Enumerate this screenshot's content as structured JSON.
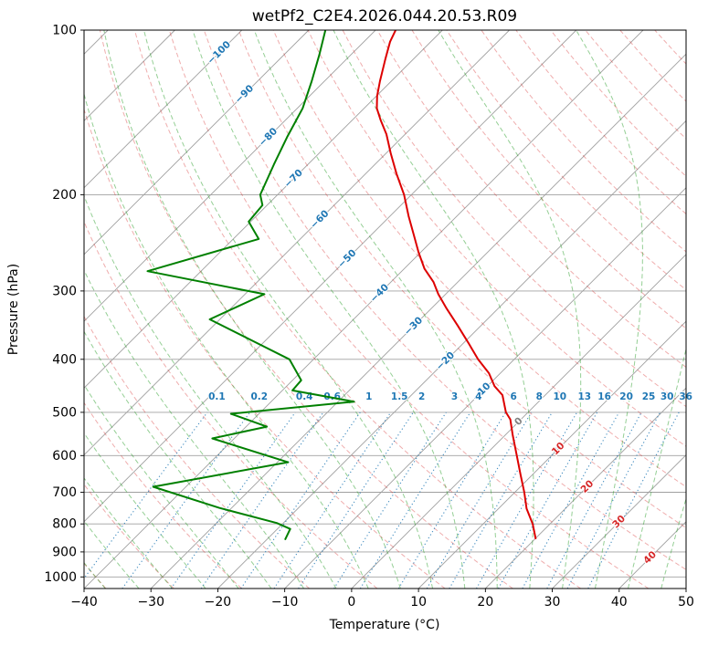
{
  "title": "wetPf2_C2E4.2026.044.20.53.R09",
  "axes": {
    "xlabel": "Temperature (°C)",
    "ylabel": "Pressure (hPa)",
    "x_tick_values": [
      -40,
      -30,
      -20,
      -10,
      0,
      10,
      20,
      30,
      40,
      50
    ],
    "x_tick_labels": [
      "−40",
      "−30",
      "−20",
      "−10",
      "0",
      "10",
      "20",
      "30",
      "40",
      "50"
    ],
    "y_tick_values": [
      100,
      200,
      300,
      400,
      500,
      600,
      700,
      800,
      900,
      1000
    ],
    "y_tick_labels": [
      "100",
      "200",
      "300",
      "400",
      "500",
      "600",
      "700",
      "800",
      "900",
      "1000"
    ]
  },
  "colors": {
    "temperature": "#dd0000",
    "dewpoint": "#008000",
    "isotherm": "#a0a0a0",
    "isobar": "#a0a0a0",
    "dry_adiabat": "rgba(214,39,40,0.38)",
    "moist_adiabat": "rgba(44,160,44,0.5)",
    "mixing_ratio": "rgba(31,119,180,0.85)",
    "label_negative": "#1f77b4",
    "label_zero": "#808080",
    "label_positive": "#d62728",
    "frame": "#000000"
  },
  "chart_data": {
    "type": "line",
    "diagram": "skew-t-log-p",
    "title": "wetPf2_C2E4.2026.044.20.53.R09",
    "xlabel": "Temperature (°C)",
    "ylabel": "Pressure (hPa)",
    "x_range_C": [
      -40,
      50
    ],
    "pressure_range_hPa": [
      1050,
      100
    ],
    "y_scale": "log",
    "skew_degrees": 45,
    "grid": true,
    "series": [
      {
        "name": "temperature",
        "color_key": "temperature",
        "points_p_T": [
          [
            850,
            20.0
          ],
          [
            800,
            17.4
          ],
          [
            750,
            14.2
          ],
          [
            700,
            11.4
          ],
          [
            650,
            8.2
          ],
          [
            600,
            4.8
          ],
          [
            550,
            1.1
          ],
          [
            515,
            -1.6
          ],
          [
            500,
            -3.3
          ],
          [
            465,
            -6.4
          ],
          [
            448,
            -8.9
          ],
          [
            424,
            -11.7
          ],
          [
            400,
            -15.4
          ],
          [
            374,
            -19.2
          ],
          [
            347,
            -23.5
          ],
          [
            323,
            -27.7
          ],
          [
            304,
            -31.1
          ],
          [
            289,
            -33.6
          ],
          [
            273,
            -37.0
          ],
          [
            255,
            -40.3
          ],
          [
            236,
            -43.8
          ],
          [
            219,
            -47.2
          ],
          [
            200,
            -51.1
          ],
          [
            183,
            -55.4
          ],
          [
            168,
            -59.3
          ],
          [
            155,
            -62.8
          ],
          [
            146,
            -65.8
          ],
          [
            139,
            -68.1
          ],
          [
            132,
            -69.9
          ],
          [
            124,
            -71.7
          ],
          [
            113,
            -74.2
          ],
          [
            105,
            -76.1
          ],
          [
            100,
            -77.0
          ]
        ]
      },
      {
        "name": "dewpoint",
        "color_key": "dewpoint",
        "points_p_T": [
          [
            853,
            -17.3
          ],
          [
            817,
            -18.1
          ],
          [
            797,
            -21.0
          ],
          [
            748,
            -31.8
          ],
          [
            684,
            -44.9
          ],
          [
            617,
            -28.4
          ],
          [
            558,
            -43.3
          ],
          [
            531,
            -36.9
          ],
          [
            503,
            -44.2
          ],
          [
            478,
            -27.6
          ],
          [
            456,
            -38.5
          ],
          [
            437,
            -38.7
          ],
          [
            400,
            -43.6
          ],
          [
            338,
            -61.5
          ],
          [
            304,
            -57.1
          ],
          [
            276,
            -78.0
          ],
          [
            241,
            -66.2
          ],
          [
            224,
            -70.3
          ],
          [
            209,
            -70.7
          ],
          [
            200,
            -72.6
          ],
          [
            176,
            -75.1
          ],
          [
            157,
            -77.2
          ],
          [
            139,
            -79.2
          ],
          [
            124,
            -81.9
          ],
          [
            111,
            -84.7
          ],
          [
            100,
            -87.5
          ]
        ]
      }
    ],
    "isotherm_labels": {
      "values": [
        -100,
        -90,
        -80,
        -70,
        -60,
        -50,
        -40,
        -30,
        -20,
        -10,
        0,
        10,
        20,
        30,
        40
      ],
      "labels": [
        "−100",
        "−90",
        "−80",
        "−70",
        "−60",
        "−50",
        "−40",
        "−30",
        "−20",
        "−10",
        "0",
        "10",
        "20",
        "30",
        "40"
      ]
    },
    "mixing_ratio_g_kg": {
      "values": [
        0.1,
        0.2,
        0.4,
        0.6,
        1,
        1.5,
        2,
        3,
        4,
        6,
        8,
        10,
        13,
        16,
        20,
        25,
        30,
        36
      ],
      "labels": [
        "0.1",
        "0.2",
        "0.4",
        "0.6",
        "1",
        "1.5",
        "2",
        "3",
        "4",
        "6",
        "8",
        "10",
        "13",
        "16",
        "20",
        "25",
        "30",
        "36"
      ]
    },
    "background_lines": {
      "isotherms_C": {
        "from": -150,
        "to": 50,
        "step": 10
      },
      "dry_adiabats_theta_C": {
        "from": -40,
        "to": 200,
        "step": 10
      },
      "moist_adiabats_start_C": {
        "from": -40,
        "to": 45,
        "step": 5
      },
      "mixing_lines_top_hPa": 500,
      "isobars_hPa": [
        100,
        200,
        300,
        400,
        500,
        600,
        700,
        800,
        900,
        1000
      ]
    }
  }
}
